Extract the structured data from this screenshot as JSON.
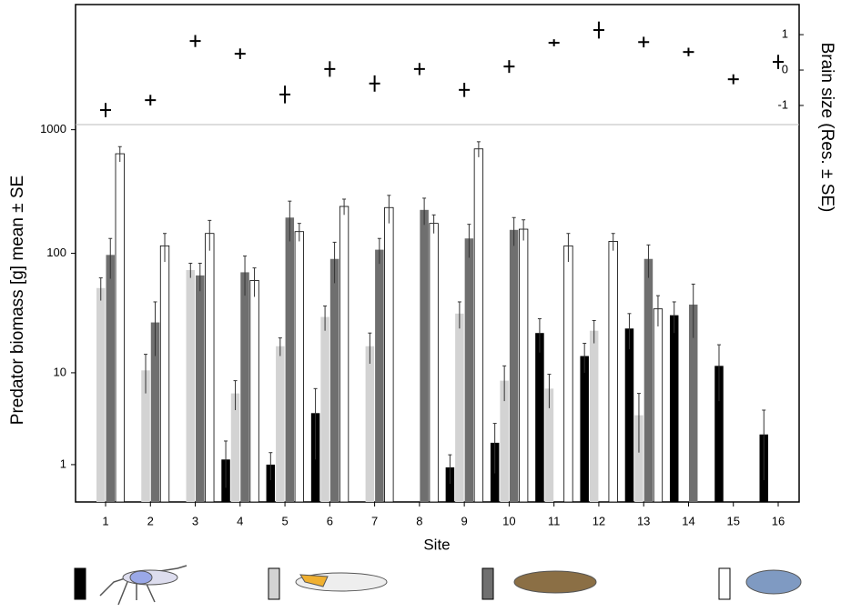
{
  "chart_data": [
    {
      "type": "errorpoint",
      "ylabel": "Brain size (Res. ± SE)",
      "values": [
        -1.13,
        -0.85,
        0.82,
        0.46,
        -0.69,
        0.03,
        -0.38,
        0.03,
        -0.56,
        0.1,
        0.77,
        1.13,
        0.79,
        0.51,
        -0.26,
        0.23
      ],
      "errors": [
        0.2,
        0.15,
        0.17,
        0.15,
        0.25,
        0.22,
        0.23,
        0.17,
        0.2,
        0.18,
        0.1,
        0.24,
        0.15,
        0.12,
        0.14,
        0.2
      ],
      "ylim": [
        -1.54,
        1.85
      ],
      "yticks": [
        -1,
        0,
        1
      ],
      "color": "#000000"
    },
    {
      "type": "bar",
      "xlabel": "Site",
      "ylabel": "Predator biomass [g] mean ± SE",
      "scale": "log1p",
      "categories": [
        "1",
        "2",
        "3",
        "4",
        "5",
        "6",
        "7",
        "8",
        "9",
        "10",
        "11",
        "12",
        "13",
        "14",
        "15",
        "16"
      ],
      "ylim": [
        0,
        1100
      ],
      "yticks": [
        1,
        10,
        100,
        1000
      ],
      "series": [
        {
          "color": "#000000",
          "values": [
            0,
            0,
            0,
            1.2,
            1.0,
            4.2,
            0,
            0,
            0.9,
            2,
            22,
            14,
            24,
            31,
            11.5,
            2.5
          ],
          "errors": [
            null,
            null,
            null,
            0.9,
            0.5,
            3,
            null,
            null,
            0.5,
            1.3,
            7,
            4,
            8,
            9,
            6,
            2
          ]
        },
        {
          "color": "#d3d3d3",
          "values": [
            52,
            10.5,
            73,
            6.5,
            17,
            30,
            17,
            0,
            32,
            8.5,
            7.2,
            23,
            4,
            0,
            0,
            0
          ],
          "errors": [
            11,
            4,
            10,
            2,
            3,
            7,
            5,
            null,
            8,
            3,
            2.5,
            5,
            2.5,
            null,
            null,
            null
          ]
        },
        {
          "color": "#6f6f6f",
          "values": [
            97,
            27,
            66,
            70,
            195,
            90,
            107,
            225,
            132,
            155,
            0,
            0,
            90,
            38,
            0,
            0
          ],
          "errors": [
            35,
            13,
            17,
            25,
            70,
            33,
            25,
            55,
            40,
            40,
            null,
            null,
            27,
            18,
            null,
            null
          ]
        },
        {
          "color": "#ffffff",
          "values": [
            640,
            115,
            145,
            60,
            150,
            240,
            235,
            175,
            700,
            157,
            115,
            125,
            35,
            0,
            0,
            0
          ],
          "errors": [
            90,
            30,
            40,
            16,
            25,
            35,
            60,
            30,
            100,
            30,
            30,
            20,
            10,
            null,
            null,
            null
          ]
        }
      ]
    }
  ]
}
